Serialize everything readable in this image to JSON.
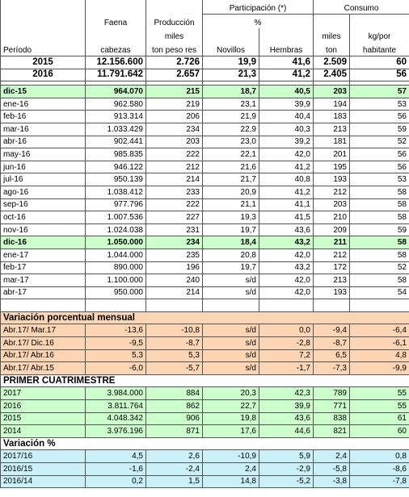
{
  "header": {
    "participacion": "Participación (*)",
    "consumo": "Consumo",
    "faena": "Faena",
    "produccion": "Producción",
    "porcentaje": "%",
    "miles_prod": "miles",
    "miles_cons": "miles",
    "kg_por": "kg/por",
    "periodo": "Período",
    "cabezas": "cabezas",
    "ton_peso_res": "ton peso res",
    "novillos": "Novillos",
    "hembras": "Hembras",
    "ton": "ton",
    "habitante": "habitante"
  },
  "annual": [
    {
      "cells": [
        "2015",
        "12.156.600",
        "2.726",
        "19,9",
        "41,6",
        "2.509",
        "60"
      ]
    },
    {
      "cells": [
        "2016",
        "11.791.642",
        "2.657",
        "21,3",
        "41,2",
        "2.405",
        "56"
      ]
    }
  ],
  "monthly": [
    {
      "cells": [
        "dic-15",
        "964.070",
        "215",
        "18,7",
        "40,5",
        "203",
        "57"
      ],
      "fill": "#ccffcc",
      "bold": true
    },
    {
      "cells": [
        "ene-16",
        "962.580",
        "219",
        "23,1",
        "39,9",
        "194",
        "53"
      ]
    },
    {
      "cells": [
        "feb-16",
        "913.314",
        "206",
        "21,9",
        "40,4",
        "183",
        "56"
      ]
    },
    {
      "cells": [
        "mar-16",
        "1.033.429",
        "234",
        "22,9",
        "40,3",
        "213",
        "59"
      ]
    },
    {
      "cells": [
        "abr-16",
        "902.441",
        "203",
        "23,0",
        "39,2",
        "181",
        "52"
      ]
    },
    {
      "cells": [
        "may-16",
        "985.835",
        "222",
        "22,1",
        "42,0",
        "201",
        "56"
      ]
    },
    {
      "cells": [
        "jun-16",
        "946.122",
        "212",
        "21,6",
        "41,2",
        "195",
        "56"
      ]
    },
    {
      "cells": [
        "jul-16",
        "950.139",
        "214",
        "21,7",
        "40,8",
        "193",
        "53"
      ]
    },
    {
      "cells": [
        "ago-16",
        "1.038.412",
        "233",
        "20,9",
        "41,2",
        "212",
        "58"
      ]
    },
    {
      "cells": [
        "sep-16",
        "977.796",
        "222",
        "21,1",
        "41,1",
        "203",
        "58"
      ]
    },
    {
      "cells": [
        "oct-16",
        "1.007.536",
        "227",
        "19,3",
        "41,5",
        "210",
        "58"
      ]
    },
    {
      "cells": [
        "nov-16",
        "1.024.038",
        "231",
        "19,7",
        "43,6",
        "209",
        "59"
      ]
    },
    {
      "cells": [
        "dic-16",
        "1.050.000",
        "234",
        "18,4",
        "43,2",
        "211",
        "58"
      ],
      "fill": "#ccffcc",
      "bold": true
    },
    {
      "cells": [
        "ene-17",
        "1.044.000",
        "235",
        "20,8",
        "42,0",
        "212",
        "58"
      ]
    },
    {
      "cells": [
        "feb-17",
        "890.000",
        "196",
        "19,7",
        "43,2",
        "172",
        "52"
      ]
    },
    {
      "cells": [
        "mar-17",
        "1.100.000",
        "240",
        "s/d",
        "42,0",
        "213",
        "58"
      ]
    },
    {
      "cells": [
        "abr-17",
        "950.000",
        "214",
        "s/d",
        "42,0",
        "193",
        "54"
      ]
    }
  ],
  "variacion_mensual": {
    "title": "Variación porcentual mensual",
    "fill": "#fcd5b4",
    "rows": [
      {
        "cells": [
          "Abr.17/ Mar.17",
          "-13,6",
          "-10,8",
          "s/d",
          "0,0",
          "-9,4",
          "-6,4"
        ]
      },
      {
        "cells": [
          "Abr.17/ Dic.16",
          "-9,5",
          "-8,7",
          "s/d",
          "-2,8",
          "-8,7",
          "-6,1"
        ]
      },
      {
        "cells": [
          "Abr.17/ Abr.16",
          "5,3",
          "5,3",
          "s/d",
          "7,2",
          "6,5",
          "4,8"
        ]
      },
      {
        "cells": [
          "Abr.17/ Abr.15",
          "-6,0",
          "-5,7",
          "s/d",
          "-1,7",
          "-7,3",
          "-9,9"
        ]
      }
    ]
  },
  "cuatrimestre": {
    "title": "PRIMER CUATRIMESTRE",
    "fill": "#ccffcc",
    "rows": [
      {
        "cells": [
          "2017",
          "3.984.000",
          "884",
          "20,3",
          "42,3",
          "789",
          "55"
        ]
      },
      {
        "cells": [
          "2016",
          "3.811.764",
          "862",
          "22,7",
          "39,9",
          "771",
          "55"
        ]
      },
      {
        "cells": [
          "2015",
          "4.048.342",
          "906",
          "19,8",
          "43,6",
          "838",
          "61"
        ]
      },
      {
        "cells": [
          "2014",
          "3.976.196",
          "871",
          "17,6",
          "44,6",
          "821",
          "60"
        ]
      }
    ]
  },
  "variacion_anual": {
    "title": "Variación %",
    "fill": "#c9f1f7",
    "rows": [
      {
        "cells": [
          "2017/16",
          "4,5",
          "2,6",
          "-10,9",
          "5,9",
          "2,4",
          "0,8"
        ]
      },
      {
        "cells": [
          "2016/15",
          "-1,6",
          "-2,4",
          "2,4",
          "-2,9",
          "-5,8",
          "-8,6"
        ]
      },
      {
        "cells": [
          "2016/14",
          "0,2",
          "1,5",
          "14,8",
          "-5,2",
          "-3,8",
          "-7,8"
        ]
      }
    ]
  }
}
